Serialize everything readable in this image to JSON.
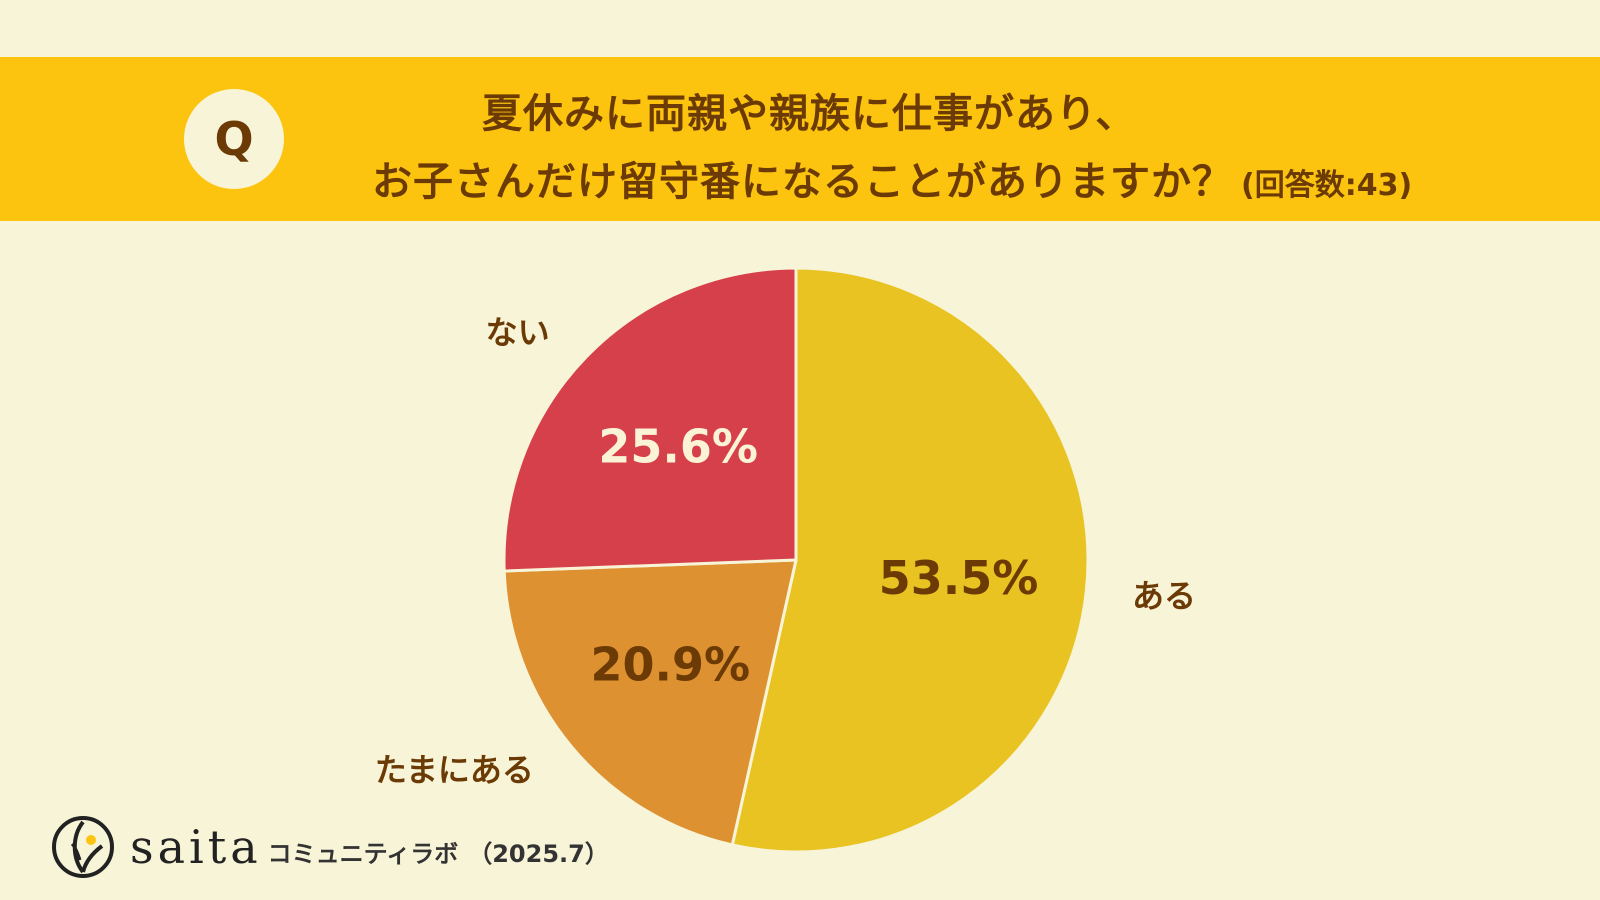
{
  "header": {
    "badge": "Q",
    "question_line1": "夏休みに両親や親族に仕事があり、",
    "question_line2": "お子さんだけ留守番になることがありますか？",
    "response_count": "(回答数:43)"
  },
  "footer": {
    "brand": "saita",
    "lab_name": "コミュニティラボ",
    "date": "（2025.7）"
  },
  "colors": {
    "background": "#f8f4d8",
    "banner": "#fcc40f",
    "text_dark": "#6b3a05",
    "text_light": "#fbf3d6"
  },
  "chart_data": {
    "type": "pie",
    "title": "",
    "categories": [
      "ある",
      "たまにある",
      "ない"
    ],
    "values": [
      53.5,
      20.9,
      25.6
    ],
    "value_labels": [
      "53.5%",
      "20.9%",
      "25.6%"
    ],
    "colors": [
      "#e9c322",
      "#dd9130",
      "#d6404b"
    ],
    "value_label_colors": [
      "#6b3a05",
      "#6b3a05",
      "#fbf3d6"
    ],
    "start": "12 o'clock",
    "direction": "clockwise",
    "legend": "none"
  }
}
